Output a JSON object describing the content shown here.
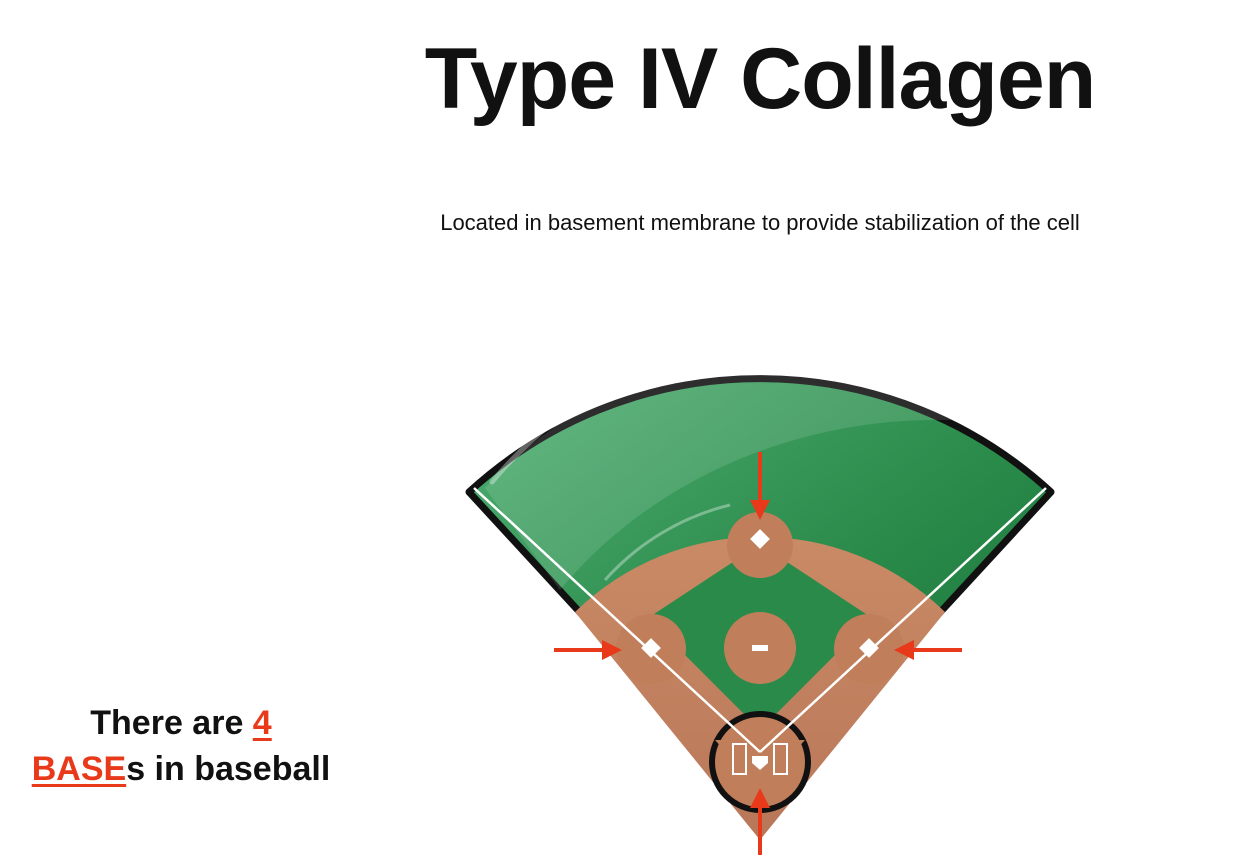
{
  "slide": {
    "title": "Type IV Collagen",
    "subtitle": "Located in basement membrane to provide stabilization of the cell"
  },
  "mnemonic": {
    "line1_prefix": "There are ",
    "number": "4",
    "line2_accent": "BASE",
    "line2_suffix": "s in baseball"
  },
  "illustration": {
    "icon": "baseball-diamond-icon",
    "arrow_count": 4
  },
  "colors": {
    "accent": "#e8391a",
    "grass": "#2a8a4a",
    "dirt": "#c07f5a",
    "outline": "#111111"
  }
}
